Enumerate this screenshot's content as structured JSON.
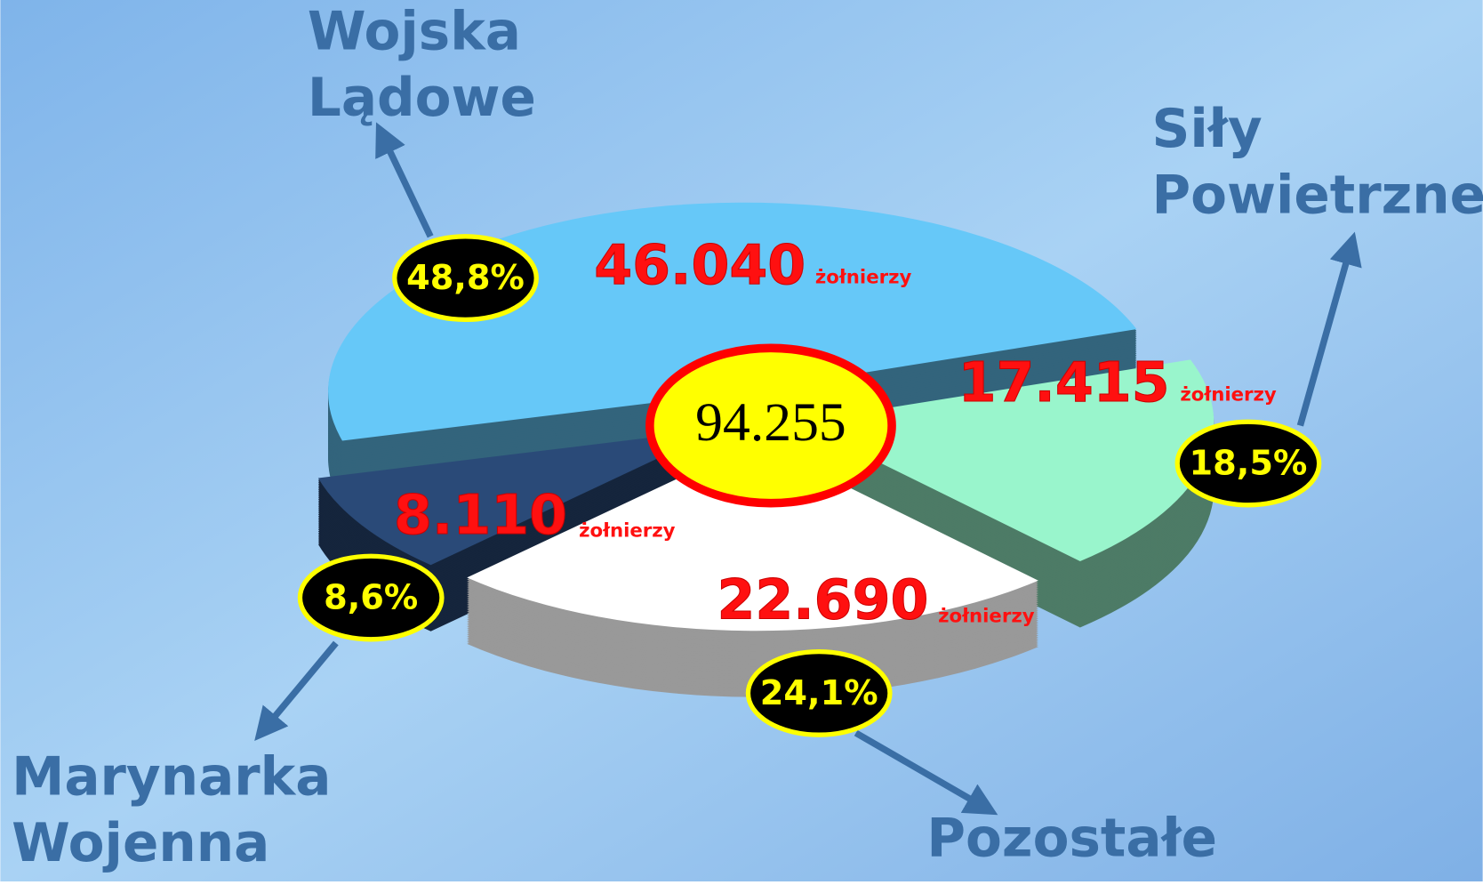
{
  "chart_data": {
    "type": "pie",
    "total_label": "94.255",
    "categories": [
      [
        "Wojska",
        "Lądowe"
      ],
      [
        "Siły",
        "Powietrzne"
      ],
      [
        "Pozostałe"
      ],
      [
        "Marynarka",
        "Wojenna"
      ]
    ],
    "values": [
      48.8,
      18.5,
      24.1,
      8.6
    ],
    "value_labels": [
      "48,8%",
      "18,5%",
      "24,1%",
      "8,6%"
    ],
    "count_labels": [
      "46.040",
      "17.415",
      "22.690",
      "8.110"
    ],
    "unit_label": "żołnierzy",
    "colors": [
      "#66c8f8",
      "#99f5cc",
      "#ffffff",
      "#2a4a78"
    ]
  }
}
